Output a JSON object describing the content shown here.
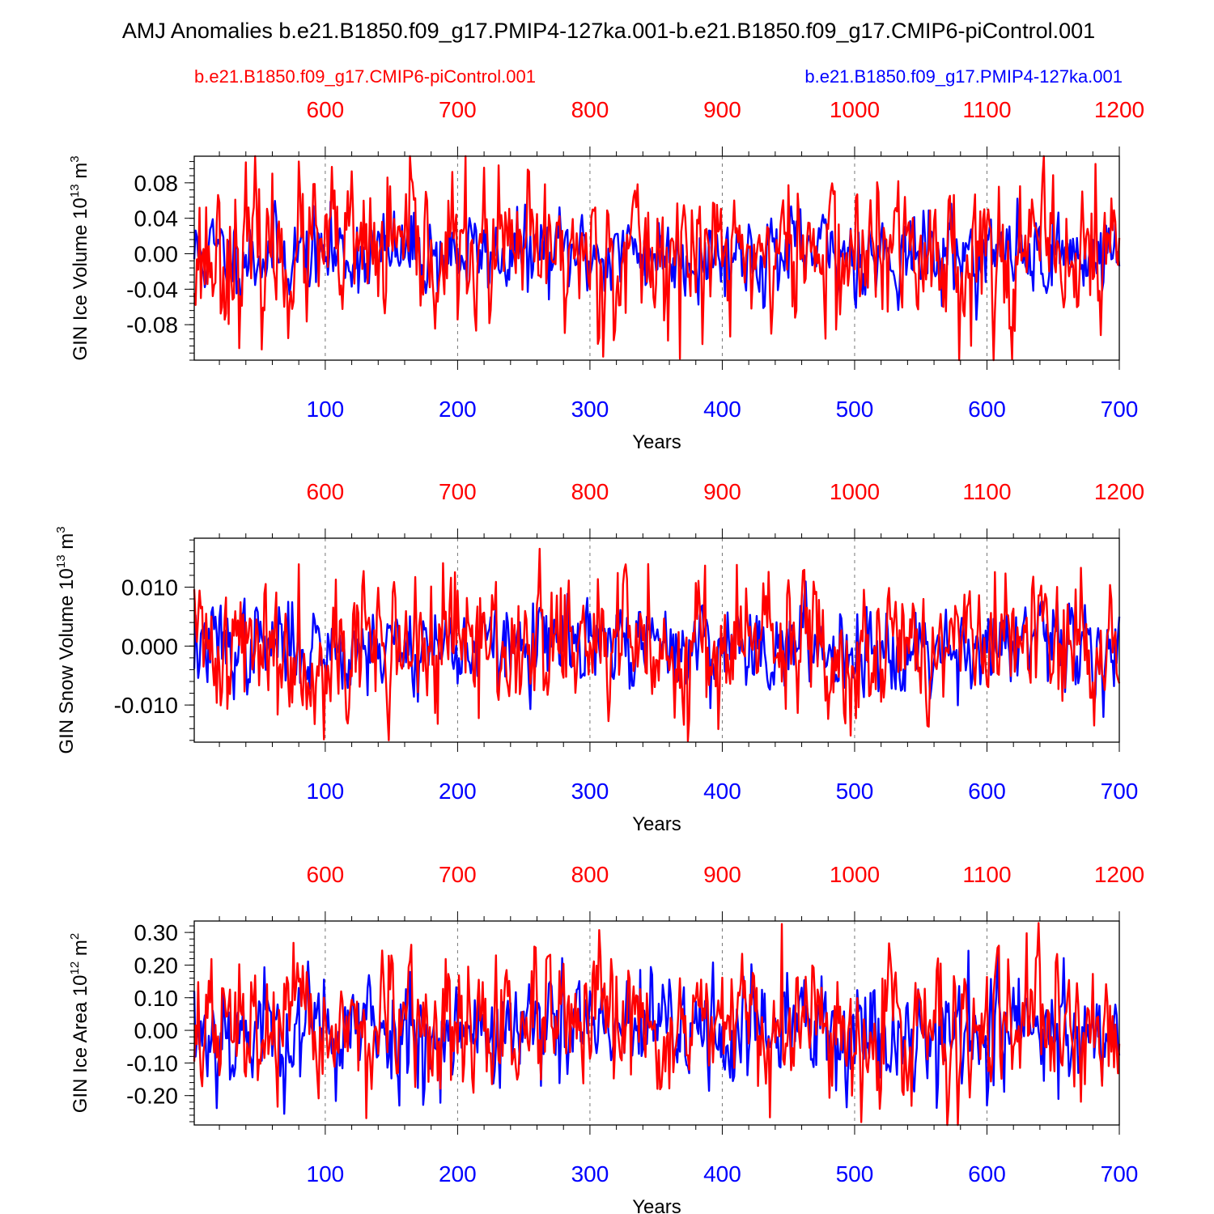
{
  "title": "AMJ Anomalies b.e21.B1850.f09_g17.PMIP4-127ka.001-b.e21.B1850.f09_g17.CMIP6-piControl.001",
  "legend": {
    "control_label": "b.e21.B1850.f09_g17.CMIP6-piControl.001",
    "experiment_label": "b.e21.B1850.f09_g17.PMIP4-127ka.001"
  },
  "colors": {
    "control": "#ff0000",
    "experiment": "#0000ff",
    "axis": "#000000"
  },
  "chart_data": [
    {
      "type": "line",
      "ylabel": "GIN Ice Volume 10",
      "ylabel_exp": "13",
      "ylabel_unit": " m",
      "ylabel_unit_exp": "3",
      "xlabel": "Years",
      "xlim_bottom": [
        1,
        700
      ],
      "xlim_top": [
        501,
        1200
      ],
      "bottom_ticks": [
        100,
        200,
        300,
        400,
        500,
        600,
        700
      ],
      "top_ticks": [
        600,
        700,
        800,
        900,
        1000,
        1100,
        1200
      ],
      "ylim": [
        -0.12,
        0.11
      ],
      "yticks": [
        -0.08,
        -0.04,
        0.0,
        0.04,
        0.08
      ],
      "ytick_labels": [
        "-0.08",
        "-0.04",
        "0.00",
        "0.04",
        "0.08"
      ],
      "yminor_step": 0.008,
      "series": [
        {
          "name": "b.e21.B1850.f09_g17.PMIP4-127ka.001",
          "axis": "bottom",
          "color": "#0000ff",
          "amplitude": 0.022,
          "offset": 0.0,
          "seed": 11
        },
        {
          "name": "b.e21.B1850.f09_g17.CMIP6-piControl.001",
          "axis": "top",
          "color": "#ff0000",
          "amplitude": 0.04,
          "offset": 0.0,
          "seed": 23
        }
      ]
    },
    {
      "type": "line",
      "ylabel": "GIN Snow Volume 10",
      "ylabel_exp": "13",
      "ylabel_unit": " m",
      "ylabel_unit_exp": "3",
      "xlabel": "Years",
      "xlim_bottom": [
        1,
        700
      ],
      "xlim_top": [
        501,
        1200
      ],
      "bottom_ticks": [
        100,
        200,
        300,
        400,
        500,
        600,
        700
      ],
      "top_ticks": [
        600,
        700,
        800,
        900,
        1000,
        1100,
        1200
      ],
      "ylim": [
        -0.0163,
        0.0183
      ],
      "yticks": [
        -0.01,
        0.0,
        0.01
      ],
      "ytick_labels": [
        "-0.010",
        "0.000",
        "0.010"
      ],
      "yminor_step": 0.002,
      "series": [
        {
          "name": "b.e21.B1850.f09_g17.PMIP4-127ka.001",
          "axis": "bottom",
          "color": "#0000ff",
          "amplitude": 0.0035,
          "offset": 0.0,
          "seed": 37
        },
        {
          "name": "b.e21.B1850.f09_g17.CMIP6-piControl.001",
          "axis": "top",
          "color": "#ff0000",
          "amplitude": 0.0058,
          "offset": 0.0,
          "seed": 41
        }
      ]
    },
    {
      "type": "line",
      "ylabel": "GIN Ice Area 10",
      "ylabel_exp": "12",
      "ylabel_unit": " m",
      "ylabel_unit_exp": "2",
      "xlabel": "Years",
      "xlim_bottom": [
        1,
        700
      ],
      "xlim_top": [
        501,
        1200
      ],
      "bottom_ticks": [
        100,
        200,
        300,
        400,
        500,
        600,
        700
      ],
      "top_ticks": [
        600,
        700,
        800,
        900,
        1000,
        1100,
        1200
      ],
      "ylim": [
        -0.29,
        0.335
      ],
      "yticks": [
        -0.2,
        -0.1,
        0.0,
        0.1,
        0.2,
        0.3
      ],
      "ytick_labels": [
        "-0.20",
        "-0.10",
        "0.00",
        "0.10",
        "0.20",
        "0.30"
      ],
      "yminor_step": 0.02,
      "series": [
        {
          "name": "b.e21.B1850.f09_g17.PMIP4-127ka.001",
          "axis": "bottom",
          "color": "#0000ff",
          "amplitude": 0.085,
          "offset": 0.0,
          "seed": 53
        },
        {
          "name": "b.e21.B1850.f09_g17.CMIP6-piControl.001",
          "axis": "top",
          "color": "#ff0000",
          "amplitude": 0.095,
          "offset": 0.0,
          "seed": 67
        }
      ]
    }
  ]
}
